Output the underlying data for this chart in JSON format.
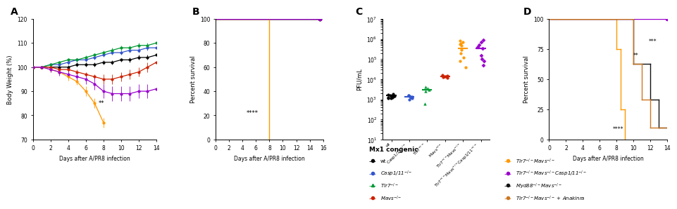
{
  "panel_A": {
    "title": "A",
    "xlabel": "Days after A/PR8 infection",
    "ylabel": "Body Weight (%)",
    "xlim": [
      0,
      14
    ],
    "ylim": [
      70,
      120
    ],
    "yticks": [
      70,
      80,
      90,
      100,
      110,
      120
    ],
    "xticks": [
      0,
      2,
      4,
      6,
      8,
      10,
      12,
      14
    ],
    "lines": [
      {
        "label": "wt",
        "color": "#000000",
        "x": [
          0,
          1,
          2,
          3,
          4,
          5,
          6,
          7,
          8,
          9,
          10,
          11,
          12,
          13,
          14
        ],
        "y": [
          100,
          100,
          100,
          100,
          100,
          101,
          101,
          101,
          102,
          102,
          103,
          103,
          104,
          104,
          105
        ],
        "yerr": [
          0.5,
          0.5,
          0.5,
          0.5,
          0.8,
          0.8,
          0.8,
          0.8,
          0.8,
          0.8,
          0.8,
          1,
          1,
          1,
          1
        ]
      },
      {
        "label": "Casp1/11-/-",
        "color": "#3355cc",
        "x": [
          0,
          1,
          2,
          3,
          4,
          5,
          6,
          7,
          8,
          9,
          10,
          11,
          12,
          13,
          14
        ],
        "y": [
          100,
          100,
          101,
          101,
          102,
          103,
          103,
          104,
          105,
          106,
          106,
          107,
          107,
          108,
          108
        ],
        "yerr": [
          0.5,
          0.5,
          0.5,
          0.5,
          0.8,
          0.8,
          0.8,
          0.8,
          0.8,
          1,
          1,
          1,
          1,
          1,
          1
        ]
      },
      {
        "label": "Tlr7-/-",
        "color": "#009933",
        "x": [
          0,
          1,
          2,
          3,
          4,
          5,
          6,
          7,
          8,
          9,
          10,
          11,
          12,
          13,
          14
        ],
        "y": [
          100,
          100,
          101,
          102,
          103,
          103,
          104,
          105,
          106,
          107,
          108,
          108,
          109,
          109,
          110
        ],
        "yerr": [
          0.5,
          0.5,
          0.5,
          0.5,
          0.8,
          0.8,
          0.8,
          0.8,
          0.8,
          1,
          1,
          1,
          1,
          1,
          1
        ]
      },
      {
        "label": "Mavs-/-",
        "color": "#cc2200",
        "x": [
          0,
          1,
          2,
          3,
          4,
          5,
          6,
          7,
          8,
          9,
          10,
          11,
          12,
          13,
          14
        ],
        "y": [
          100,
          100,
          100,
          99,
          99,
          98,
          97,
          96,
          95,
          95,
          96,
          97,
          98,
          100,
          102
        ],
        "yerr": [
          0.5,
          0.5,
          0.8,
          0.8,
          1,
          1,
          1,
          1,
          2,
          2,
          2,
          2,
          2,
          2,
          2
        ]
      },
      {
        "label": "Tlr7-/-Mavs-/-",
        "color": "#ff9900",
        "x": [
          0,
          1,
          2,
          3,
          4,
          5,
          6,
          7,
          8
        ],
        "y": [
          100,
          100,
          99,
          98,
          96,
          94,
          90,
          85,
          77
        ],
        "yerr": [
          0.5,
          0.5,
          1,
          1,
          1.5,
          1.5,
          2,
          2,
          2
        ]
      },
      {
        "label": "Tlr7-/-Mavs-/-Casp1/11-/-",
        "color": "#9900cc",
        "x": [
          0,
          1,
          2,
          3,
          4,
          5,
          6,
          7,
          8,
          9,
          10,
          11,
          12,
          13,
          14
        ],
        "y": [
          100,
          100,
          99,
          98,
          97,
          96,
          95,
          93,
          90,
          89,
          89,
          89,
          90,
          90,
          91
        ],
        "yerr": [
          0.5,
          0.5,
          1,
          1.5,
          1.5,
          2,
          2,
          2.5,
          3,
          3,
          3,
          3,
          3,
          3,
          3
        ]
      }
    ],
    "annotation": "**",
    "ann_x": 7.8,
    "ann_y": 85
  },
  "panel_B": {
    "title": "B",
    "xlabel": "Days after A/PR8 infection",
    "ylabel": "Percent survival",
    "xlim": [
      0,
      16
    ],
    "ylim": [
      0,
      100
    ],
    "yticks": [
      0,
      20,
      40,
      60,
      80,
      100
    ],
    "xticks": [
      0,
      2,
      4,
      6,
      8,
      10,
      12,
      14,
      16
    ],
    "annotation": "****",
    "ann_x": 5.5,
    "ann_y": 22,
    "survivors_x": 15.5,
    "lines": [
      {
        "label": "wt",
        "color": "#000000",
        "x": [
          0,
          15.5
        ],
        "y": [
          100,
          100
        ],
        "drop_day": null
      },
      {
        "label": "Casp1/11-/-",
        "color": "#3355cc",
        "x": [
          0,
          15.5
        ],
        "y": [
          100,
          100
        ],
        "drop_day": null
      },
      {
        "label": "Tlr7-/-",
        "color": "#009933",
        "x": [
          0,
          15.5
        ],
        "y": [
          100,
          100
        ],
        "drop_day": null
      },
      {
        "label": "Mavs-/-",
        "color": "#cc2200",
        "x": [
          0,
          15.5
        ],
        "y": [
          100,
          100
        ],
        "drop_day": null
      },
      {
        "label": "Tlr7-/-Mavs-/-",
        "color": "#ff9900",
        "x": [
          0,
          8
        ],
        "y": [
          100,
          100
        ],
        "drop_day": 8
      },
      {
        "label": "Tlr7-/-Mavs-/-Casp1/11-/-",
        "color": "#9900cc",
        "x": [
          0,
          15.5
        ],
        "y": [
          100,
          100
        ],
        "drop_day": null
      }
    ]
  },
  "panel_C": {
    "title": "C",
    "ylabel": "PFU/mL",
    "ylim_log": [
      1,
      7
    ],
    "yticks_log": [
      1,
      2,
      3,
      4,
      5,
      6,
      7
    ],
    "categories": [
      "wt",
      "Casp1/11-/-",
      "Tlr7-/-",
      "Mavs-/-",
      "Tlr7-/-Mavs-/-",
      "Tlr7-/-Mavs-/-Casp1/11-/-"
    ],
    "cat_labels": [
      "wt",
      "Casp1/11$^{-/-}$",
      "Tlr7$^{-/-}$",
      "Mavs$^{-/-}$",
      "Tlr7$^{-/-}$Mavs$^{-/-}$",
      "Tlr7$^{-/-}$Mavs$^{-/-}$Casp1/11$^{-/-}$"
    ],
    "colors": [
      "#000000",
      "#3355cc",
      "#009933",
      "#cc2200",
      "#ff9900",
      "#9900cc"
    ],
    "markers": [
      "o",
      "o",
      "^",
      "o",
      "o",
      "D"
    ],
    "medians": [
      1500,
      1300,
      3000,
      14000,
      350000,
      350000
    ],
    "scatter_seeds": [
      42,
      43,
      44,
      45,
      46,
      47
    ],
    "scatter": [
      [
        1200,
        1100,
        1400,
        1700,
        1800,
        1300,
        1600,
        1200,
        1400,
        1100
      ],
      [
        1300,
        1200,
        1500,
        1400,
        1100,
        1600,
        1300,
        1000
      ],
      [
        600,
        3000,
        4000,
        3500,
        2500
      ],
      [
        12000,
        15000,
        13000,
        14000,
        16000,
        13500
      ],
      [
        80000,
        200000,
        450000,
        700000,
        850000,
        300000,
        550000,
        40000,
        120000,
        600000
      ],
      [
        50000,
        150000,
        400000,
        700000,
        100000,
        350000,
        900000,
        500000,
        80000
      ]
    ]
  },
  "panel_D": {
    "title": "D",
    "xlabel": "Days after A/PR8 infection",
    "ylabel": "Percent survival",
    "xlim": [
      0,
      14
    ],
    "ylim": [
      0,
      100
    ],
    "yticks": [
      0,
      25,
      50,
      75,
      100
    ],
    "xticks": [
      0,
      2,
      4,
      6,
      8,
      10,
      12,
      14
    ],
    "annotation1": "****",
    "ann1_x": 8.2,
    "ann1_y": 7,
    "annotation2": "**",
    "ann2_x": 10.3,
    "ann2_y": 68,
    "annotation3": "***",
    "ann3_x": 12.3,
    "ann3_y": 80
  },
  "legend_D": {
    "subtitle": "Mx1 congenic",
    "left_entries": [
      {
        "label": "wt",
        "color": "#000000",
        "marker": "o",
        "italic": false
      },
      {
        "label": "Casp1/11$^{-/-}$",
        "color": "#3355cc",
        "marker": "o",
        "italic": true
      },
      {
        "label": "Tlr7$^{-/-}$",
        "color": "#009933",
        "marker": "^",
        "italic": true
      },
      {
        "label": "Mavs$^{-/-}$",
        "color": "#cc2200",
        "marker": "o",
        "italic": true
      }
    ],
    "right_entries": [
      {
        "label": "Tlr7$^{-/-}$Mavs$^{-/-}$",
        "color": "#ff9900",
        "marker": "o",
        "italic": true
      },
      {
        "label": "Tlr7$^{-/-}$Mavs$^{-/-}$Casp1/11$^{-/-}$",
        "color": "#9900cc",
        "marker": "o",
        "italic": true
      },
      {
        "label": "Myd88$^{-/-}$Mavs$^{-/-}$",
        "color": "#111111",
        "marker": "o",
        "italic": true
      },
      {
        "label": "Tlr7$^{-/-}$Mavs$^{-/-}$ + Anakinra",
        "color": "#cc7722",
        "marker": "o",
        "italic": true
      }
    ]
  }
}
